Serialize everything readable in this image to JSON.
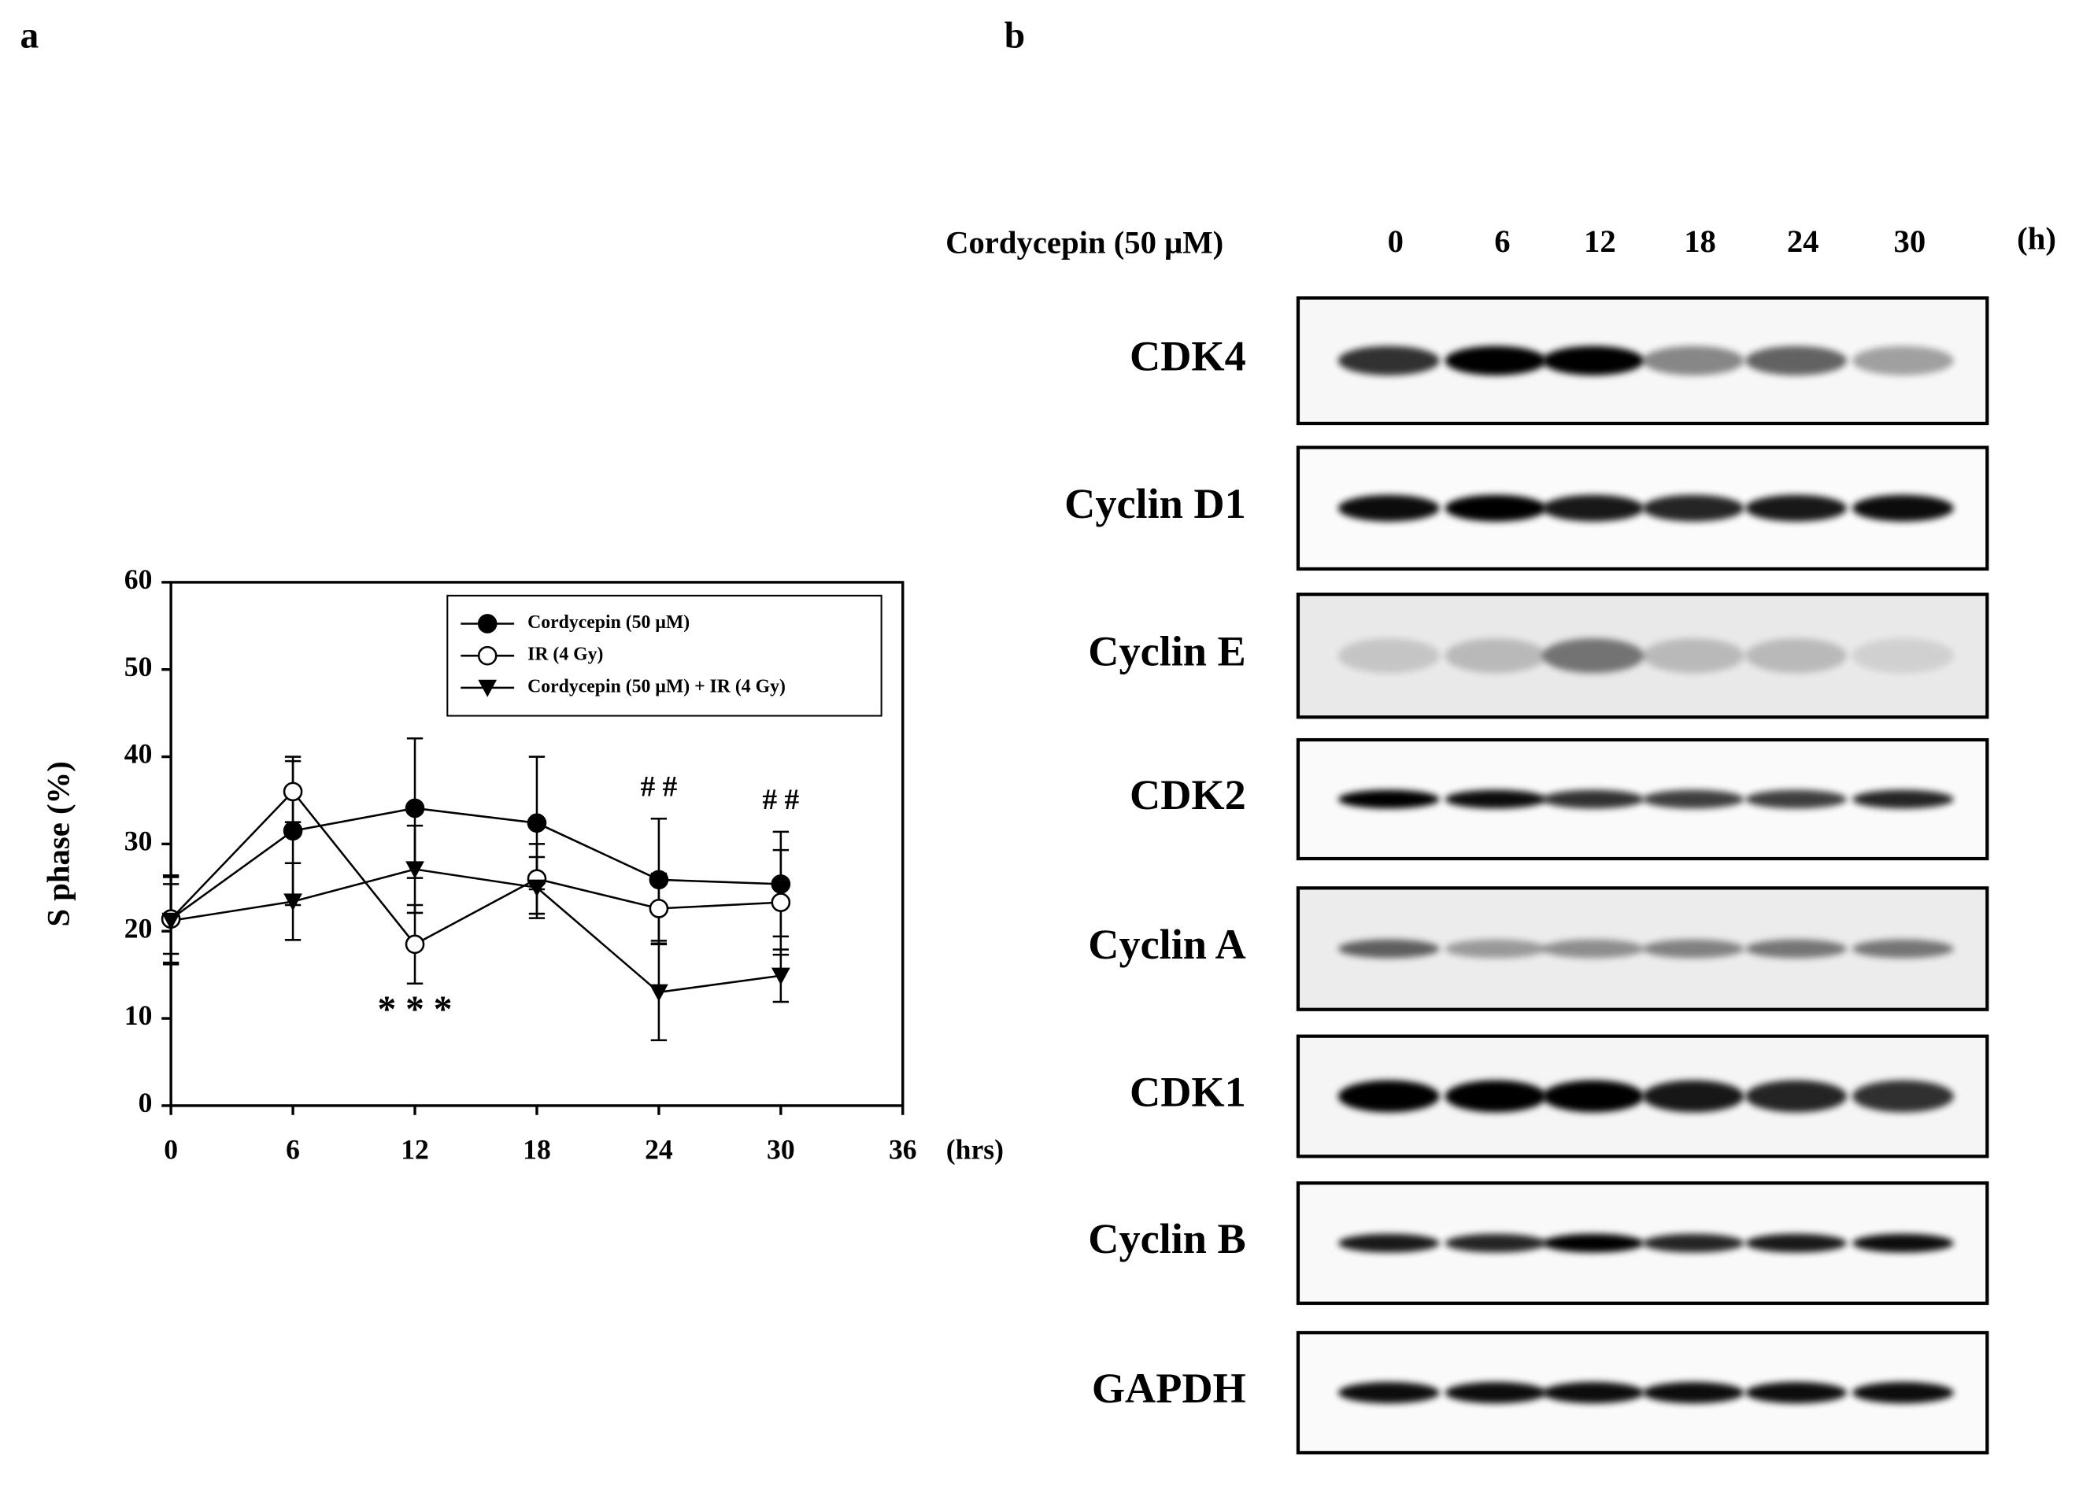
{
  "panel_labels": [
    "a",
    "b"
  ],
  "chart_data": {
    "type": "line",
    "x": [
      0,
      6,
      12,
      18,
      24,
      30
    ],
    "xlim": [
      0,
      36
    ],
    "xticks": [
      0,
      6,
      12,
      18,
      24,
      30,
      36
    ],
    "x_unit": "(hrs)",
    "ylim": [
      0,
      60
    ],
    "yticks": [
      0,
      10,
      20,
      30,
      40,
      50,
      60
    ],
    "ylabel": "S phase (%)",
    "grid": false,
    "legend": "upper right",
    "series": [
      {
        "name": "Cordycepin (50 μM)",
        "color": "#000000",
        "marker": "circle-filled",
        "values": [
          21.4,
          31.5,
          34.1,
          32.4,
          25.9,
          25.4
        ],
        "errors": [
          5,
          8.5,
          8,
          7.6,
          7,
          6
        ]
      },
      {
        "name": "IR (4 Gy)",
        "color": "#000000",
        "marker": "circle-open",
        "values": [
          21.4,
          36,
          18.5,
          26,
          22.6,
          23.3
        ],
        "errors": [
          4,
          3.5,
          4.5,
          4,
          4,
          6
        ]
      },
      {
        "name": "Cordycepin (50 μM) + IR (4 Gy)",
        "color": "#000000",
        "marker": "triangle-down",
        "values": [
          21.2,
          23.4,
          27.1,
          25,
          13,
          14.9
        ],
        "errors": [
          5,
          4.4,
          5,
          3.5,
          5.5,
          3
        ]
      }
    ],
    "annotations": [
      {
        "text": "* * *",
        "x": 12
      },
      {
        "text": "# #",
        "x": 24
      },
      {
        "text": "# #",
        "x": 30
      }
    ]
  },
  "blot": {
    "treatment": "Cordycepin (50 μM)",
    "lanes": [
      "0",
      "6",
      "12",
      "18",
      "24",
      "30"
    ],
    "unit": "(h)",
    "rows": [
      "CDK4",
      "Cyclin D1",
      "Cyclin E",
      "CDK2",
      "Cyclin A",
      "CDK1",
      "Cyclin B",
      "GAPDH"
    ]
  }
}
